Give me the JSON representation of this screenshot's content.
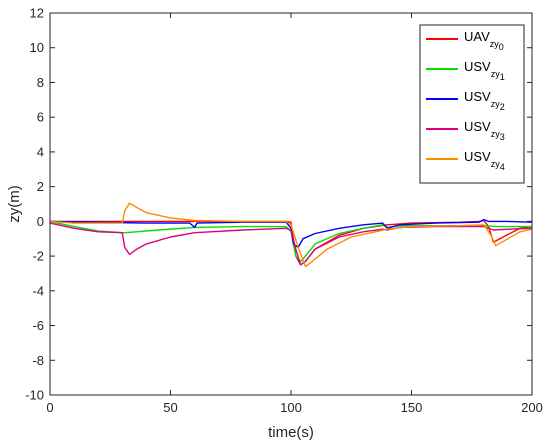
{
  "chart_data": {
    "type": "line",
    "xlabel": "time(s)",
    "ylabel": "zy(m)",
    "xlim": [
      0,
      200
    ],
    "ylim": [
      -10,
      12
    ],
    "xticks": [
      0,
      50,
      100,
      150,
      200
    ],
    "yticks": [
      -10,
      -8,
      -6,
      -4,
      -2,
      0,
      2,
      4,
      6,
      8,
      10,
      12
    ],
    "grid": false,
    "legend_position": "top-right",
    "series": [
      {
        "name": "UAV",
        "subscript": "zy",
        "subindex": "0",
        "color": "#ff0000",
        "points": [
          [
            0,
            0
          ],
          [
            30,
            0
          ],
          [
            60,
            0
          ],
          [
            98,
            0
          ],
          [
            100,
            -0.05
          ],
          [
            102,
            -2.0
          ],
          [
            104,
            -2.5
          ],
          [
            106,
            -2.3
          ],
          [
            110,
            -1.6
          ],
          [
            120,
            -0.8
          ],
          [
            130,
            -0.4
          ],
          [
            140,
            -0.2
          ],
          [
            150,
            -0.1
          ],
          [
            170,
            -0.05
          ],
          [
            178,
            0
          ],
          [
            180,
            0.05
          ],
          [
            182,
            -0.3
          ],
          [
            184,
            -1.2
          ],
          [
            188,
            -0.9
          ],
          [
            195,
            -0.4
          ],
          [
            200,
            -0.3
          ]
        ]
      },
      {
        "name": "USV",
        "subscript": "zy",
        "subindex": "1",
        "color": "#00e000",
        "points": [
          [
            0,
            0
          ],
          [
            10,
            -0.3
          ],
          [
            20,
            -0.55
          ],
          [
            30,
            -0.65
          ],
          [
            31,
            -0.65
          ],
          [
            45,
            -0.5
          ],
          [
            60,
            -0.35
          ],
          [
            80,
            -0.3
          ],
          [
            98,
            -0.3
          ],
          [
            100,
            -0.6
          ],
          [
            102,
            -2.0
          ],
          [
            104,
            -2.3
          ],
          [
            106,
            -2.0
          ],
          [
            110,
            -1.3
          ],
          [
            120,
            -0.7
          ],
          [
            130,
            -0.4
          ],
          [
            138,
            -0.2
          ],
          [
            140,
            -0.35
          ],
          [
            145,
            -0.25
          ],
          [
            160,
            -0.25
          ],
          [
            180,
            -0.25
          ],
          [
            185,
            -0.3
          ],
          [
            190,
            -0.3
          ],
          [
            200,
            -0.3
          ]
        ]
      },
      {
        "name": "USV",
        "subscript": "zy",
        "subindex": "2",
        "color": "#0000ff",
        "points": [
          [
            0,
            0
          ],
          [
            20,
            -0.05
          ],
          [
            40,
            -0.1
          ],
          [
            58,
            -0.1
          ],
          [
            60,
            -0.35
          ],
          [
            61,
            -0.1
          ],
          [
            80,
            -0.05
          ],
          [
            98,
            -0.05
          ],
          [
            100,
            -0.4
          ],
          [
            101,
            -1.3
          ],
          [
            103,
            -1.5
          ],
          [
            105,
            -1.0
          ],
          [
            110,
            -0.7
          ],
          [
            120,
            -0.4
          ],
          [
            130,
            -0.2
          ],
          [
            138,
            -0.1
          ],
          [
            140,
            -0.4
          ],
          [
            145,
            -0.2
          ],
          [
            160,
            -0.1
          ],
          [
            178,
            -0.05
          ],
          [
            180,
            0.1
          ],
          [
            182,
            0
          ],
          [
            190,
            0
          ],
          [
            200,
            -0.05
          ]
        ]
      },
      {
        "name": "USV",
        "subscript": "zy",
        "subindex": "3",
        "color": "#e0007f",
        "points": [
          [
            0,
            -0.1
          ],
          [
            10,
            -0.4
          ],
          [
            20,
            -0.6
          ],
          [
            30,
            -0.65
          ],
          [
            31,
            -1.5
          ],
          [
            33,
            -1.9
          ],
          [
            36,
            -1.6
          ],
          [
            40,
            -1.3
          ],
          [
            50,
            -0.9
          ],
          [
            60,
            -0.65
          ],
          [
            80,
            -0.5
          ],
          [
            98,
            -0.4
          ],
          [
            100,
            -0.5
          ],
          [
            102,
            -1.6
          ],
          [
            104,
            -2.5
          ],
          [
            106,
            -2.3
          ],
          [
            110,
            -1.6
          ],
          [
            120,
            -0.9
          ],
          [
            130,
            -0.6
          ],
          [
            138,
            -0.45
          ],
          [
            140,
            -0.5
          ],
          [
            145,
            -0.35
          ],
          [
            160,
            -0.3
          ],
          [
            180,
            -0.3
          ],
          [
            184,
            -0.5
          ],
          [
            190,
            -0.45
          ],
          [
            200,
            -0.4
          ]
        ]
      },
      {
        "name": "USV",
        "subscript": "zy",
        "subindex": "4",
        "color": "#ff8c00",
        "points": [
          [
            0,
            0
          ],
          [
            10,
            -0.1
          ],
          [
            20,
            -0.1
          ],
          [
            30,
            -0.1
          ],
          [
            31,
            0.6
          ],
          [
            33,
            1.05
          ],
          [
            36,
            0.8
          ],
          [
            40,
            0.5
          ],
          [
            50,
            0.2
          ],
          [
            60,
            0.05
          ],
          [
            80,
            0
          ],
          [
            98,
            0
          ],
          [
            100,
            -0.2
          ],
          [
            103,
            -1.5
          ],
          [
            106,
            -2.6
          ],
          [
            108,
            -2.4
          ],
          [
            115,
            -1.6
          ],
          [
            125,
            -0.9
          ],
          [
            140,
            -0.45
          ],
          [
            150,
            -0.3
          ],
          [
            170,
            -0.25
          ],
          [
            180,
            -0.2
          ],
          [
            183,
            -0.8
          ],
          [
            185,
            -1.4
          ],
          [
            190,
            -1.0
          ],
          [
            195,
            -0.6
          ],
          [
            200,
            -0.45
          ]
        ]
      }
    ]
  }
}
